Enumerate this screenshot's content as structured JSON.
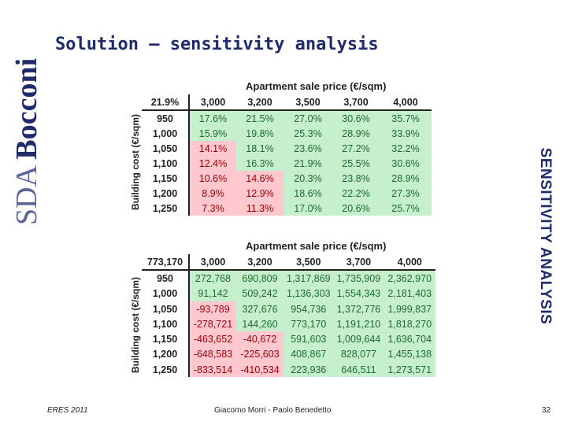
{
  "slide": {
    "title": "Solution – sensitivity analysis",
    "side_label": "SENSITIVITY ANALYSIS",
    "logo_text": "SDA Bocconi",
    "logo_color": "#1f2b6b"
  },
  "tables": [
    {
      "corner": "21.9%",
      "col_title": "Apartment sale price (€/sqm)",
      "row_title": "Building cost (€/sqm)",
      "columns": [
        "3,000",
        "3,200",
        "3,500",
        "3,700",
        "4,000"
      ],
      "rows": [
        {
          "label": "950",
          "cells": [
            "17.6%",
            "21.5%",
            "27.0%",
            "30.6%",
            "35.7%"
          ],
          "status": [
            "pos",
            "pos",
            "pos",
            "pos",
            "pos"
          ]
        },
        {
          "label": "1,000",
          "cells": [
            "15.9%",
            "19.8%",
            "25.3%",
            "28.9%",
            "33.9%"
          ],
          "status": [
            "pos",
            "pos",
            "pos",
            "pos",
            "pos"
          ]
        },
        {
          "label": "1,050",
          "cells": [
            "14.1%",
            "18.1%",
            "23.6%",
            "27.2%",
            "32.2%"
          ],
          "status": [
            "neg",
            "pos",
            "pos",
            "pos",
            "pos"
          ]
        },
        {
          "label": "1,100",
          "cells": [
            "12.4%",
            "16.3%",
            "21.9%",
            "25.5%",
            "30.6%"
          ],
          "status": [
            "neg",
            "pos",
            "pos",
            "pos",
            "pos"
          ]
        },
        {
          "label": "1,150",
          "cells": [
            "10.6%",
            "14.6%",
            "20.3%",
            "23.8%",
            "28.9%"
          ],
          "status": [
            "neg",
            "neg",
            "pos",
            "pos",
            "pos"
          ]
        },
        {
          "label": "1,200",
          "cells": [
            "8.9%",
            "12.9%",
            "18.6%",
            "22.2%",
            "27.3%"
          ],
          "status": [
            "neg",
            "neg",
            "pos",
            "pos",
            "pos"
          ]
        },
        {
          "label": "1,250",
          "cells": [
            "7.3%",
            "11.3%",
            "17.0%",
            "20.6%",
            "25.7%"
          ],
          "status": [
            "neg",
            "neg",
            "pos",
            "pos",
            "pos"
          ]
        }
      ]
    },
    {
      "corner": "773,170",
      "col_title": "Apartment sale price (€/sqm)",
      "row_title": "Building cost (€/sqm)",
      "columns": [
        "3,000",
        "3,200",
        "3,500",
        "3,700",
        "4,000"
      ],
      "rows": [
        {
          "label": "950",
          "cells": [
            "272,768",
            "690,809",
            "1,317,869",
            "1,735,909",
            "2,362,970"
          ],
          "status": [
            "pos",
            "pos",
            "pos",
            "pos",
            "pos"
          ]
        },
        {
          "label": "1,000",
          "cells": [
            "91,142",
            "509,242",
            "1,136,303",
            "1,554,343",
            "2,181,403"
          ],
          "status": [
            "pos",
            "pos",
            "pos",
            "pos",
            "pos"
          ]
        },
        {
          "label": "1,050",
          "cells": [
            "-93,789",
            "327,676",
            "954,736",
            "1,372,776",
            "1,999,837"
          ],
          "status": [
            "neg",
            "pos",
            "pos",
            "pos",
            "pos"
          ]
        },
        {
          "label": "1,100",
          "cells": [
            "-278,721",
            "144,260",
            "773,170",
            "1,191,210",
            "1,818,270"
          ],
          "status": [
            "neg",
            "pos",
            "pos",
            "pos",
            "pos"
          ]
        },
        {
          "label": "1,150",
          "cells": [
            "-463,652",
            "-40,672",
            "591,603",
            "1,009,644",
            "1,636,704"
          ],
          "status": [
            "neg",
            "neg",
            "pos",
            "pos",
            "pos"
          ]
        },
        {
          "label": "1,200",
          "cells": [
            "-648,583",
            "-225,603",
            "408,867",
            "828,077",
            "1,455,138"
          ],
          "status": [
            "neg",
            "neg",
            "pos",
            "pos",
            "pos"
          ]
        },
        {
          "label": "1,250",
          "cells": [
            "-833,514",
            "-410,534",
            "223,936",
            "646,511",
            "1,273,571"
          ],
          "status": [
            "neg",
            "neg",
            "pos",
            "pos",
            "pos"
          ]
        }
      ]
    }
  ],
  "footer": {
    "left": "ERES 2011",
    "center": "Giacomo Morri - Paolo Benedetto",
    "page": "32"
  }
}
